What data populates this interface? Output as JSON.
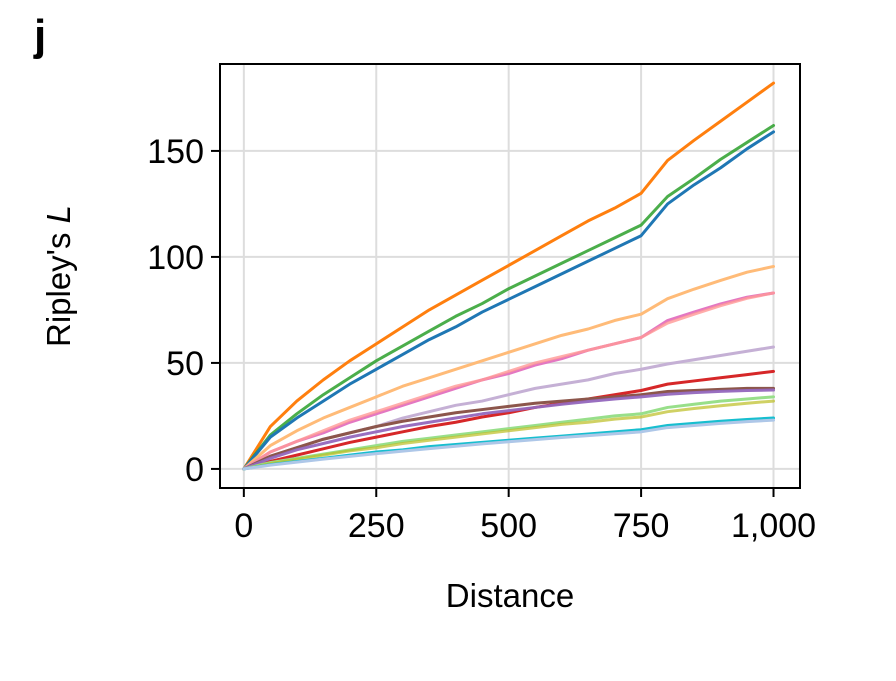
{
  "panel_label": "j",
  "chart_data": {
    "type": "line",
    "xlabel": "Distance",
    "ylabel_text": "Ripley's ",
    "ylabel_italic": "L",
    "xlim": [
      -45,
      1050
    ],
    "ylim": [
      -9,
      191
    ],
    "xticks": [
      0,
      250,
      500,
      750,
      1000
    ],
    "xtick_labels": [
      "0",
      "250",
      "500",
      "750",
      "1,000"
    ],
    "yticks": [
      0,
      50,
      100,
      150
    ],
    "ytick_labels": [
      "0",
      "50",
      "100",
      "150"
    ],
    "grid": true,
    "x": [
      0,
      50,
      100,
      150,
      200,
      250,
      300,
      350,
      400,
      450,
      500,
      550,
      600,
      650,
      700,
      750,
      800,
      850,
      900,
      950,
      1000
    ],
    "series": [
      {
        "color": "#ff7f0e",
        "width": 3,
        "opacity": 1,
        "values": [
          0,
          20,
          32,
          42,
          51,
          59,
          67,
          75,
          82,
          89,
          96,
          103,
          110,
          117,
          123,
          130,
          145.5,
          155,
          164,
          173,
          182
        ]
      },
      {
        "color": "#2ca02c",
        "width": 3,
        "opacity": 0.85,
        "values": [
          0,
          16,
          26,
          35,
          43,
          51,
          58,
          65,
          72,
          78,
          85,
          91,
          97,
          103,
          109,
          115,
          128.5,
          137,
          146,
          154,
          162
        ]
      },
      {
        "color": "#1f77b4",
        "width": 3,
        "opacity": 1,
        "values": [
          0,
          15,
          24,
          32,
          40,
          47,
          54,
          61,
          67,
          74,
          80,
          86,
          92,
          98,
          104,
          110,
          125,
          134,
          142,
          151,
          159
        ]
      },
      {
        "color": "#ffbb78",
        "width": 3,
        "opacity": 1,
        "values": [
          0,
          11,
          18,
          24,
          29,
          34,
          39,
          43,
          47,
          51,
          55,
          59,
          63,
          66,
          70,
          73,
          80.3,
          84.8,
          88.9,
          92.8,
          95.5
        ]
      },
      {
        "color": "#e377c2",
        "width": 3,
        "opacity": 1,
        "values": [
          0,
          8,
          13,
          17,
          22,
          26,
          30,
          34,
          38,
          42,
          45,
          49,
          52,
          56,
          59,
          62,
          70,
          74,
          77.8,
          81,
          83
        ]
      },
      {
        "color": "#ff9896",
        "width": 3,
        "opacity": 0.8,
        "values": [
          0,
          8,
          13,
          18,
          23,
          27,
          31,
          35,
          39,
          42,
          46,
          50,
          53,
          56,
          59,
          62,
          68.8,
          73,
          77,
          80.5,
          83
        ]
      },
      {
        "color": "#c5b0d5",
        "width": 3,
        "opacity": 1,
        "values": [
          0,
          6,
          10,
          14,
          17,
          20,
          24,
          27,
          30,
          32,
          35,
          38,
          40,
          42,
          45,
          47,
          49.5,
          51.5,
          53.5,
          55.5,
          57.5
        ]
      },
      {
        "color": "#d62728",
        "width": 3,
        "opacity": 1,
        "values": [
          0,
          3.5,
          6.5,
          9.5,
          12.5,
          15,
          17.5,
          20,
          22,
          24.5,
          26.5,
          29,
          31,
          33,
          35,
          37,
          40,
          41.5,
          43,
          44.5,
          46
        ]
      },
      {
        "color": "#8c564b",
        "width": 3,
        "opacity": 1,
        "values": [
          0,
          6,
          10,
          14,
          17,
          20,
          22.5,
          24.5,
          26.5,
          28,
          29.5,
          31,
          32,
          33,
          34,
          35,
          36.5,
          37,
          37.5,
          38,
          38
        ]
      },
      {
        "color": "#9467bd",
        "width": 3,
        "opacity": 0.95,
        "values": [
          0,
          5,
          9,
          12,
          15,
          17.5,
          20,
          22,
          24,
          26,
          27.5,
          29,
          30.5,
          31.8,
          33,
          34,
          35.2,
          36,
          36.6,
          37,
          37.2
        ]
      },
      {
        "color": "#98df8a",
        "width": 3,
        "opacity": 1,
        "values": [
          0,
          3,
          5,
          7,
          9,
          11,
          13,
          14.5,
          16,
          17.5,
          19,
          20.5,
          22,
          23.5,
          25,
          26,
          29,
          30.5,
          32,
          33,
          34
        ]
      },
      {
        "color": "#bcbd22",
        "width": 3,
        "opacity": 0.7,
        "values": [
          0,
          2.5,
          4.5,
          6.5,
          8.5,
          10,
          12,
          13.5,
          15,
          16.5,
          18,
          19.5,
          21,
          22,
          23.5,
          24.5,
          27,
          28.5,
          29.8,
          31,
          32
        ]
      },
      {
        "color": "#17becf",
        "width": 3,
        "opacity": 1,
        "values": [
          0,
          2,
          3.5,
          5,
          6.5,
          8,
          9,
          10.5,
          11.5,
          12.5,
          13.5,
          14.5,
          15.5,
          16.5,
          17.5,
          18.5,
          20.5,
          21.5,
          22.5,
          23.3,
          24
        ]
      },
      {
        "color": "#aec7e8",
        "width": 3,
        "opacity": 1,
        "values": [
          0,
          1.8,
          3.2,
          4.6,
          5.9,
          7.2,
          8.4,
          9.6,
          10.7,
          11.8,
          12.8,
          13.8,
          14.8,
          15.7,
          16.6,
          17.5,
          19.5,
          20.5,
          21.5,
          22.3,
          23
        ]
      }
    ]
  }
}
